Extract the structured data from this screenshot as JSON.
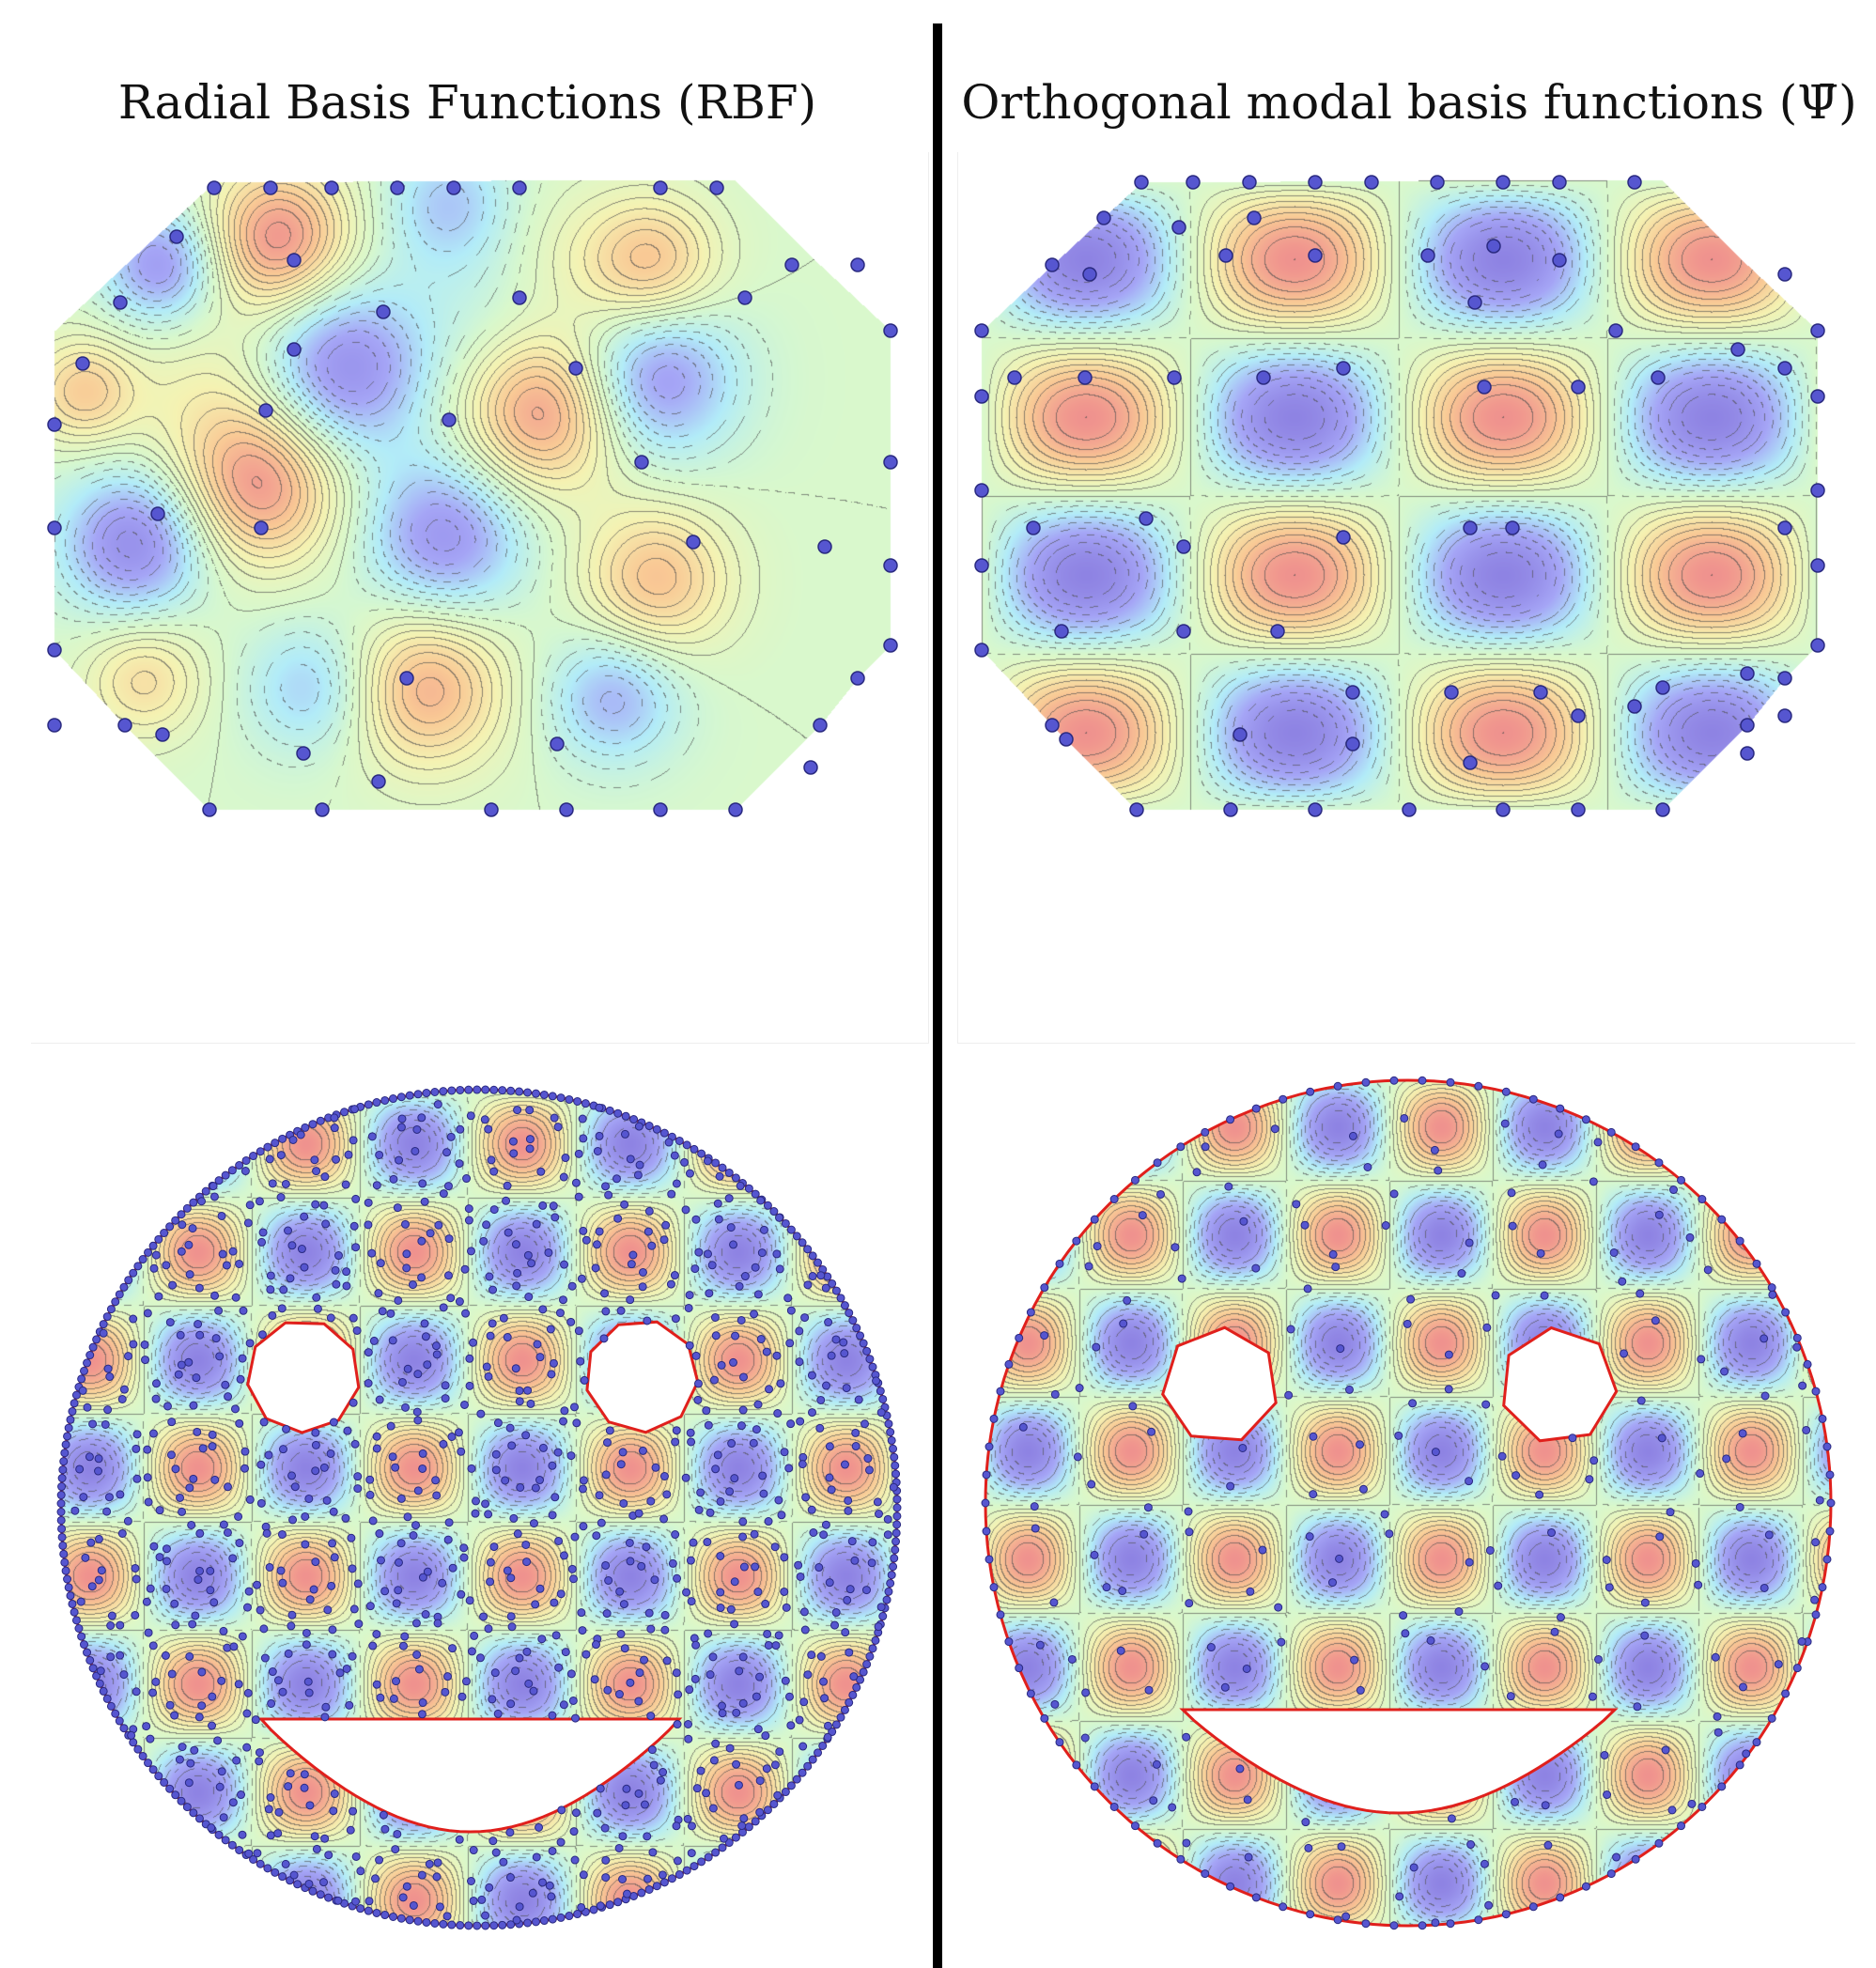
{
  "titles": {
    "left": "Radial Basis Functions (RBF)",
    "right": "Orthogonal modal basis functions (Ψ̄)"
  },
  "colormap": [
    "#5b4bd6",
    "#7c7cf2",
    "#8fe3f5",
    "#c7f5b5",
    "#f0ec8f",
    "#f6b064",
    "#e8605a"
  ],
  "panels": {
    "top_left": {
      "domain": "octagon",
      "basis": "rbf",
      "node_color": "#5a5ad6"
    },
    "top_right": {
      "domain": "octagon",
      "basis": "modal",
      "node_color": "#5a5ad6"
    },
    "bottom_left": {
      "domain": "smiley-face",
      "basis": "rbf-dense",
      "boundary_color": "#e0201c"
    },
    "bottom_right": {
      "domain": "smiley-face",
      "basis": "modal",
      "boundary_color": "#e0201c"
    }
  }
}
